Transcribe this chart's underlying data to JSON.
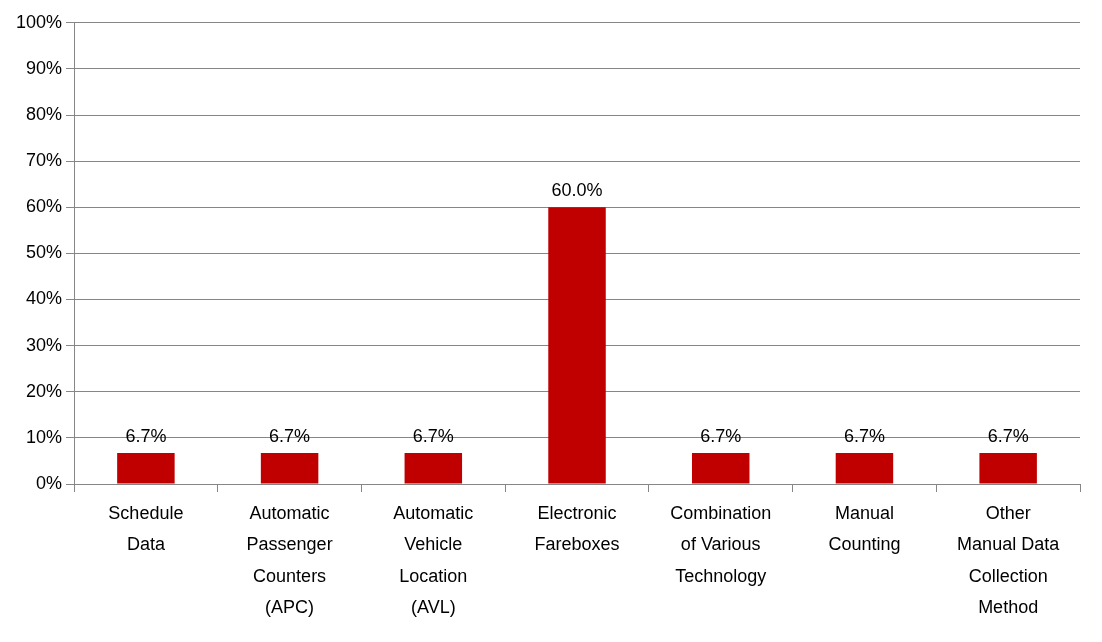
{
  "chart_data": {
    "type": "bar",
    "categories": [
      "Schedule Data",
      "Automatic Passenger Counters (APC)",
      "Automatic Vehicle Location (AVL)",
      "Electronic Fareboxes",
      "Combination of Various Technology",
      "Manual Counting",
      "Other Manual Data Collection Method"
    ],
    "values": [
      6.7,
      6.7,
      6.7,
      60.0,
      6.7,
      6.7,
      6.7
    ],
    "color": "#c00000",
    "value_labels": [
      "6.7%",
      "6.7%",
      "6.7%",
      "60.0%",
      "6.7%",
      "6.7%",
      "6.7%"
    ],
    "ylim": [
      0,
      100
    ],
    "yticks": [
      {
        "value": 0,
        "label": "0%"
      },
      {
        "value": 10,
        "label": "10%"
      },
      {
        "value": 20,
        "label": "20%"
      },
      {
        "value": 30,
        "label": "30%"
      },
      {
        "value": 40,
        "label": "40%"
      },
      {
        "value": 50,
        "label": "50%"
      },
      {
        "value": 60,
        "label": "60%"
      },
      {
        "value": 70,
        "label": "70%"
      },
      {
        "value": 80,
        "label": "80%"
      },
      {
        "value": 90,
        "label": "90%"
      },
      {
        "value": 100,
        "label": "100%"
      }
    ],
    "grid": "y"
  }
}
